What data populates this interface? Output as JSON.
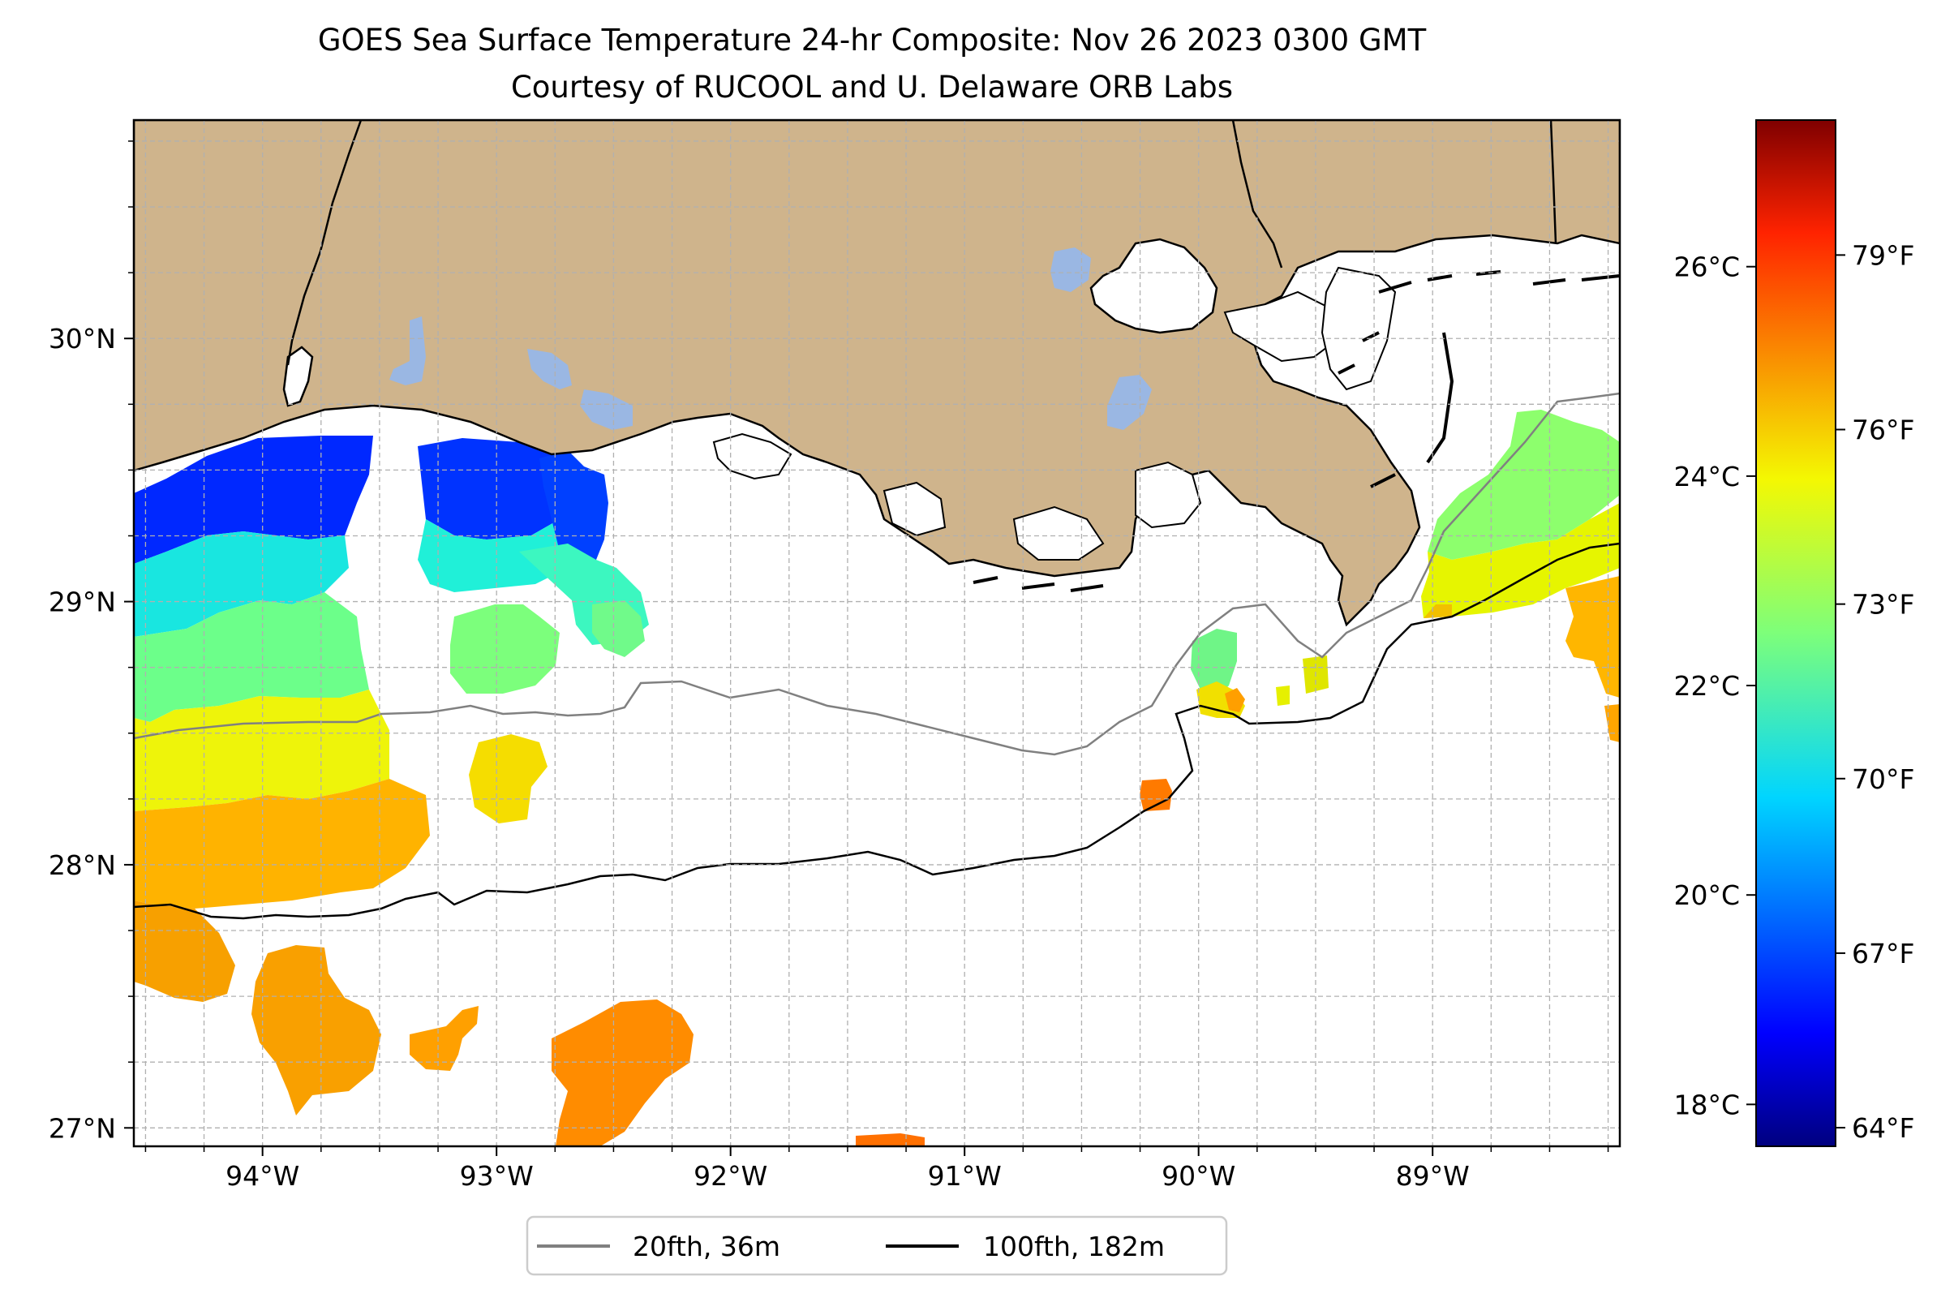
{
  "title": {
    "line1": "GOES Sea Surface Temperature 24-hr Composite: Nov 26 2023 0300 GMT",
    "line2": "Courtesy of RUCOOL and U. Delaware ORB Labs"
  },
  "map": {
    "lon_range": [
      -94.55,
      -88.2
    ],
    "lat_range": [
      26.93,
      30.83
    ],
    "lon_ticks": [
      {
        "value": -94,
        "label": "94°W"
      },
      {
        "value": -93,
        "label": "93°W"
      },
      {
        "value": -92,
        "label": "92°W"
      },
      {
        "value": -91,
        "label": "91°W"
      },
      {
        "value": -90,
        "label": "90°W"
      },
      {
        "value": -89,
        "label": "89°W"
      }
    ],
    "lat_ticks": [
      {
        "value": 27,
        "label": "27°N"
      },
      {
        "value": 28,
        "label": "28°N"
      },
      {
        "value": 29,
        "label": "29°N"
      },
      {
        "value": 30,
        "label": "30°N"
      }
    ],
    "grid": true,
    "land_color": "#cfb48c",
    "lake_color": "#9ab7e3",
    "isobaths": [
      {
        "label": "20fth, 36m",
        "color": "#808080"
      },
      {
        "label": "100fth, 182m",
        "color": "#000000"
      }
    ],
    "legend_position": "bottom-center"
  },
  "colorbar": {
    "colormap": "jet",
    "range_c": [
      17.6,
      27.4
    ],
    "celsius_ticks": [
      {
        "value": 18,
        "label": "18°C"
      },
      {
        "value": 20,
        "label": "20°C"
      },
      {
        "value": 22,
        "label": "22°C"
      },
      {
        "value": 24,
        "label": "24°C"
      },
      {
        "value": 26,
        "label": "26°C"
      }
    ],
    "fahrenheit_ticks": [
      {
        "value": 64,
        "label": "64°F"
      },
      {
        "value": 67,
        "label": "67°F"
      },
      {
        "value": 70,
        "label": "70°F"
      },
      {
        "value": 73,
        "label": "73°F"
      },
      {
        "value": 76,
        "label": "76°F"
      },
      {
        "value": 79,
        "label": "79°F"
      }
    ]
  }
}
